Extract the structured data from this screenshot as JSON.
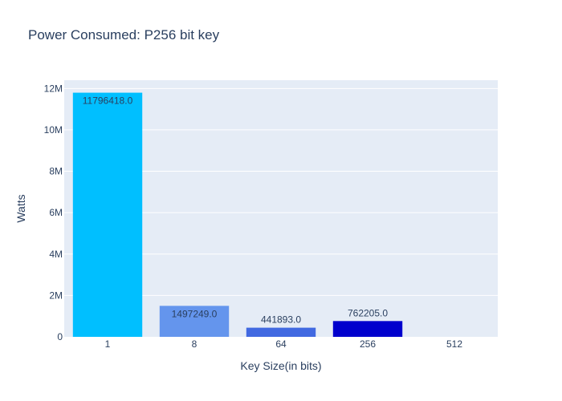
{
  "chart_data": {
    "type": "bar",
    "title": "Power Consumed: P256 bit key",
    "xlabel": "Key Size(in bits)",
    "ylabel": "Watts",
    "categories": [
      "1",
      "8",
      "64",
      "256",
      "512"
    ],
    "values": [
      11796418.0,
      1497249.0,
      441893.0,
      762205.0,
      0
    ],
    "value_labels": [
      "11796418.0",
      "1497249.0",
      "441893.0",
      "762205.0",
      ""
    ],
    "bar_colors": [
      "#00bfff",
      "#6495ed",
      "#4169e1",
      "#0000cd",
      "#00008b"
    ],
    "ylim": [
      0,
      12400000
    ],
    "yticks": [
      0,
      2000000,
      4000000,
      6000000,
      8000000,
      10000000,
      12000000
    ],
    "ytick_labels": [
      "0",
      "2M",
      "4M",
      "6M",
      "8M",
      "10M",
      "12M"
    ],
    "grid": true,
    "plot_background": "#e5ecf6",
    "text_color": "#2a3f5f"
  }
}
